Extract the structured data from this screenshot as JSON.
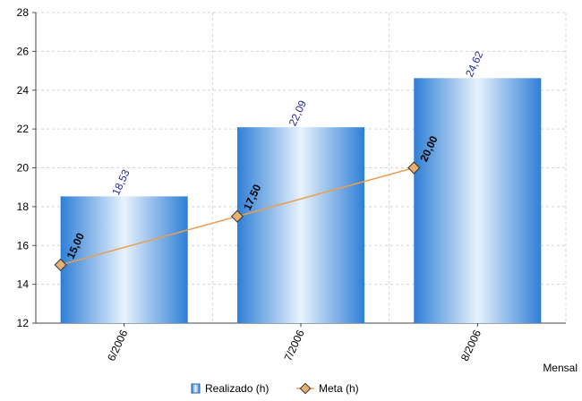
{
  "chart_data": {
    "type": "bar",
    "categories": [
      "6/2006",
      "7/2006",
      "8/2006"
    ],
    "series": [
      {
        "name": "Realizado (h)",
        "kind": "bar",
        "values": [
          18.53,
          22.09,
          24.62
        ],
        "labels": [
          "18,53",
          "22,09",
          "24,62"
        ]
      },
      {
        "name": "Meta (h)",
        "kind": "line",
        "values": [
          15.0,
          17.5,
          20.0
        ],
        "labels": [
          "15,00",
          "17,50",
          "20,00"
        ]
      }
    ],
    "ylim": [
      12,
      28
    ],
    "yticks": [
      "12",
      "14",
      "16",
      "18",
      "20",
      "22",
      "24",
      "26",
      "28"
    ],
    "xlabel": "Mensal",
    "grid": true,
    "legend_position": "bottom",
    "colors": {
      "bar": "#2f7fd6",
      "bar_light": "#e8f2fc",
      "line": "#e8a050",
      "marker": "#e8b070"
    }
  }
}
